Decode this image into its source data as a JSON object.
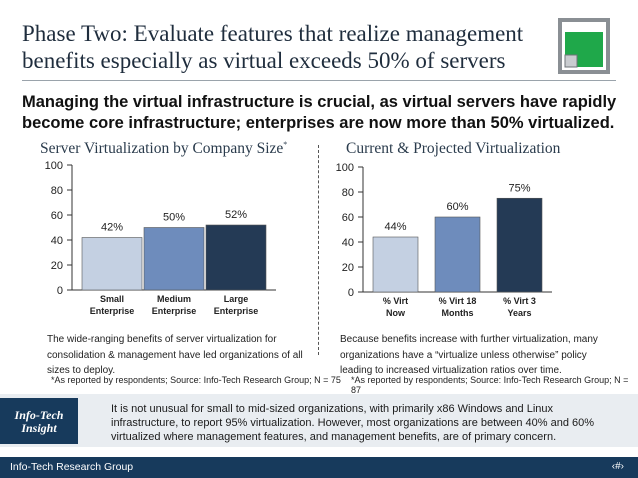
{
  "slide": {
    "title": "Phase Two: Evaluate features that realize management benefits especially as virtual exceeds 50% of servers",
    "headline": "Managing the virtual infrastructure is crucial, as virtual servers have rapidly become core infrastructure; enterprises are now more than 50% virtualized.",
    "left": {
      "subtitle": "Server Virtualization by Company Size",
      "subtitle_mark": "*",
      "description": "The wide-ranging benefits of server virtualization for consolidation & management have led organizations of all sizes to deploy.",
      "footnote": "*As reported by respondents; Source: Info-Tech Research Group; N = 75"
    },
    "right": {
      "subtitle": "Current & Projected Virtualization",
      "description": "Because benefits increase with further virtualization, many organizations have a “virtualize unless otherwise” policy leading to increased virtualization ratios over time.",
      "footnote": "*As reported by respondents; Source: Info-Tech Research Group; N = 87"
    },
    "insight": {
      "badge": "Info-Tech Insight",
      "text": "It is not unusual for small to mid-sized organizations, with primarily x86 Windows and Linux infrastructure, to report 95% virtualization. However, most organizations are between 40% and 60% virtualized where management features, and management benefits, are of primary concern."
    },
    "footer": {
      "org": "Info-Tech Research Group",
      "page": "‹#›"
    },
    "colors": {
      "navy": "#173a5c",
      "logo_green": "#1fa84a"
    }
  },
  "chart_data": [
    {
      "type": "bar",
      "title": "Server Virtualization by Company Size",
      "categories": [
        [
          "Small",
          "Enterprise"
        ],
        [
          "Medium",
          "Enterprise"
        ],
        [
          "Large",
          "Enterprise"
        ]
      ],
      "values": [
        42,
        50,
        52
      ],
      "labels": [
        "42%",
        "50%",
        "52%"
      ],
      "colors": [
        "#c4d0e2",
        "#6e8cbc",
        "#243a55"
      ],
      "ylim": [
        0,
        100
      ],
      "yticks": [
        0,
        20,
        40,
        60,
        80,
        100
      ]
    },
    {
      "type": "bar",
      "title": "Current & Projected Virtualization",
      "categories": [
        [
          "% Virt",
          "Now"
        ],
        [
          "% Virt 18",
          "Months"
        ],
        [
          "% Virt 3",
          "Years"
        ]
      ],
      "values": [
        44,
        60,
        75
      ],
      "labels": [
        "44%",
        "60%",
        "75%"
      ],
      "colors": [
        "#c4d0e2",
        "#6e8cbc",
        "#243a55"
      ],
      "ylim": [
        0,
        100
      ],
      "yticks": [
        0,
        20,
        40,
        60,
        80,
        100
      ]
    }
  ]
}
